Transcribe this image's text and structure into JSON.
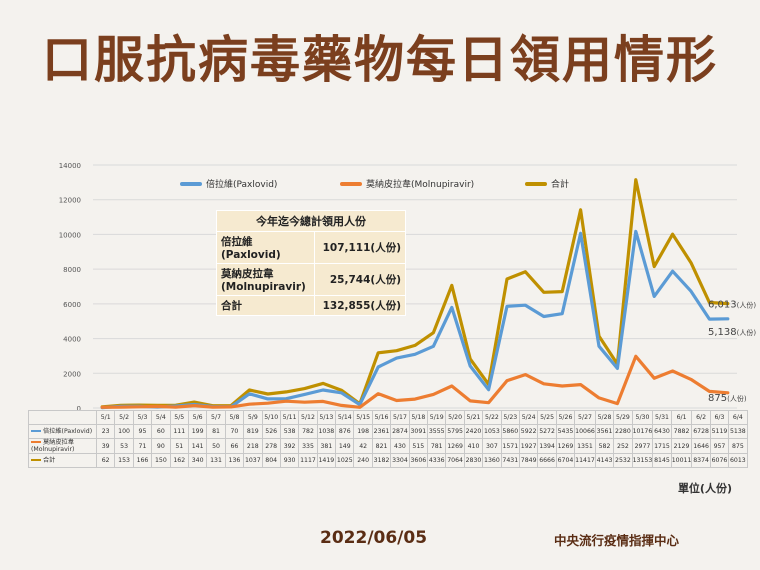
{
  "title": "口服抗病毒藥物每日領用情形",
  "date_text": "2022/06/05",
  "organization": "中央流行疫情指揮中心",
  "unit_label": "單位(人份)",
  "summary": {
    "header": "今年迄今總計領用人份",
    "rows": [
      {
        "label1": "倍拉維",
        "label2": "(Paxlovid)",
        "value": "107,111(人份)"
      },
      {
        "label1": "莫納皮拉韋",
        "label2": "(Molnupiravir)",
        "value": "25,744(人份)"
      },
      {
        "label1": "合計",
        "label2": "",
        "value": "132,855(人份)"
      }
    ]
  },
  "end_labels": {
    "s0": "5,138",
    "s1": "875",
    "s2": "6,013",
    "unit": "(人份)"
  },
  "chart_data": {
    "type": "line",
    "categories": [
      "5/1",
      "5/2",
      "5/3",
      "5/4",
      "5/5",
      "5/6",
      "5/7",
      "5/8",
      "5/9",
      "5/10",
      "5/11",
      "5/12",
      "5/13",
      "5/14",
      "5/15",
      "5/16",
      "5/17",
      "5/18",
      "5/19",
      "5/20",
      "5/21",
      "5/22",
      "5/23",
      "5/24",
      "5/25",
      "5/26",
      "5/27",
      "5/28",
      "5/29",
      "5/30",
      "5/31",
      "6/1",
      "6/2",
      "6/3",
      "6/4"
    ],
    "ylim": [
      0,
      14000
    ],
    "yticks": [
      0,
      2000,
      4000,
      6000,
      8000,
      10000,
      12000,
      14000
    ],
    "grid": true,
    "legend_position": "top",
    "series": [
      {
        "name": "倍拉維(Paxlovid)",
        "table_name": "倍拉維(Paxlovid)",
        "color": "#5b9bd5",
        "values": [
          23,
          100,
          95,
          60,
          111,
          199,
          81,
          70,
          819,
          526,
          538,
          782,
          1038,
          876,
          198,
          2361,
          2874,
          3091,
          3555,
          5795,
          2420,
          1053,
          5860,
          5922,
          5272,
          5435,
          10066,
          3561,
          2280,
          10176,
          6430,
          7882,
          6728,
          5119,
          5138
        ]
      },
      {
        "name": "莫納皮拉韋(Molnupiravir)",
        "table_name": "莫納皮拉韋(Molnupiravir)",
        "color": "#ed7d31",
        "values": [
          39,
          53,
          71,
          90,
          51,
          141,
          50,
          66,
          218,
          278,
          392,
          335,
          381,
          149,
          42,
          821,
          430,
          515,
          781,
          1269,
          410,
          307,
          1571,
          1927,
          1394,
          1269,
          1351,
          582,
          252,
          2977,
          1715,
          2129,
          1646,
          957,
          875
        ]
      },
      {
        "name": "合計",
        "table_name": "合計",
        "color": "#bf9000",
        "values": [
          62,
          153,
          166,
          150,
          162,
          340,
          131,
          136,
          1037,
          804,
          930,
          1117,
          1419,
          1025,
          240,
          3182,
          3304,
          3606,
          4336,
          7064,
          2830,
          1360,
          7431,
          7849,
          6666,
          6704,
          11417,
          4143,
          2532,
          13153,
          8145,
          10011,
          8374,
          6076,
          6013
        ]
      }
    ]
  }
}
